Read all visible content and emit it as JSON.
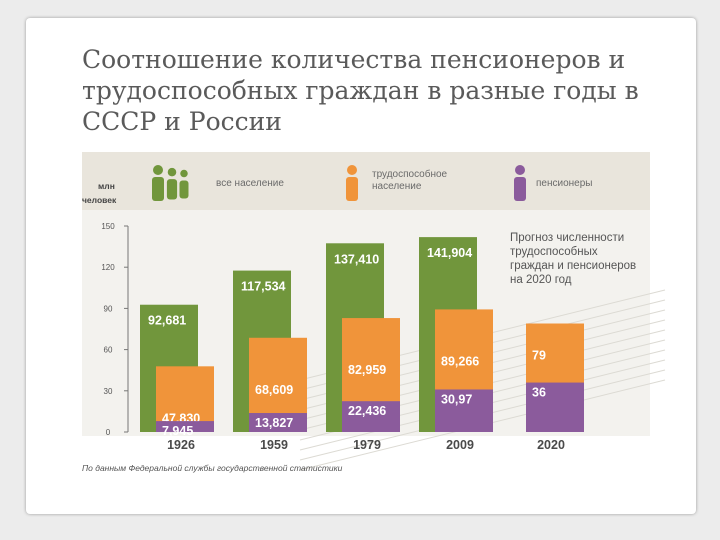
{
  "slide": {
    "title": "Соотношение количества пенсионеров и трудоспособных граждан в разные годы в СССР и России"
  },
  "chart_data": {
    "type": "bar",
    "unit_label": [
      "млн",
      "человек"
    ],
    "legend": [
      {
        "label": "все население",
        "icon": "family-icon",
        "color": "#71963c"
      },
      {
        "label": "трудоспособное население",
        "icon": "worker-icon",
        "color": "#f0943a"
      },
      {
        "label": "пенсионеры",
        "icon": "elderly-person-icon",
        "color": "#8b5b9c"
      }
    ],
    "categories": [
      "1926",
      "1959",
      "1979",
      "2009",
      "2020"
    ],
    "series": [
      {
        "name": "все население",
        "color": "#71963c",
        "values": [
          92.681,
          117.534,
          137.41,
          141.904,
          null
        ],
        "labels": [
          "92,681",
          "117,534",
          "137,410",
          "141,904",
          ""
        ]
      },
      {
        "name": "трудоспособное население",
        "color": "#f0943a",
        "values": [
          47.83,
          68.609,
          82.959,
          89.266,
          79
        ],
        "labels": [
          "47,830",
          "68,609",
          "82,959",
          "89,266",
          "79"
        ]
      },
      {
        "name": "пенсионеры",
        "color": "#8b5b9c",
        "values": [
          7.945,
          13.827,
          22.436,
          30.97,
          36
        ],
        "labels": [
          "7,945",
          "13,827",
          "22,436",
          "30,97",
          "36"
        ]
      }
    ],
    "yticks": [
      0,
      30,
      60,
      90,
      120,
      150
    ],
    "ylim": [
      0,
      150
    ],
    "annotation": [
      "Прогноз численности",
      "трудоспособных",
      "граждан и пенсионеров",
      "на 2020 год"
    ],
    "source": "По данным Федеральной службы государственной статистики",
    "header_bg": "#e9e5dc",
    "plot_bg": "#f3f2ee",
    "grid": true
  }
}
